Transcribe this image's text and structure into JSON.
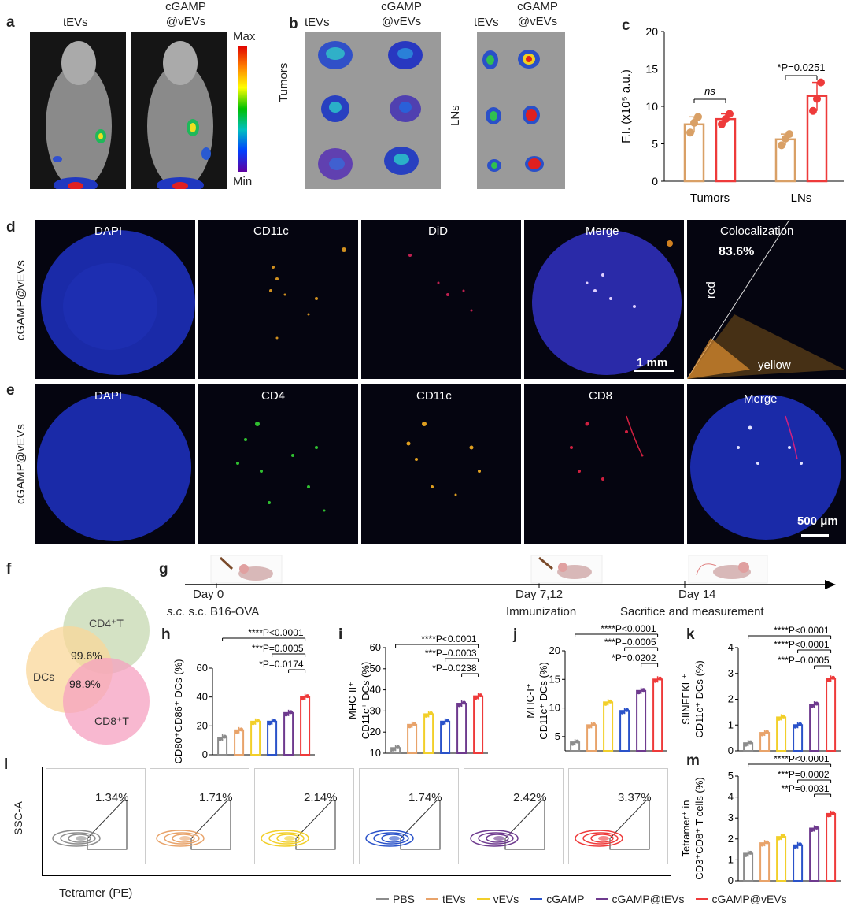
{
  "panel_labels": {
    "a": "a",
    "b": "b",
    "c": "c",
    "d": "d",
    "e": "e",
    "f": "f",
    "g": "g",
    "h": "h",
    "i": "i",
    "j": "j",
    "k": "k",
    "l": "l",
    "m": "m"
  },
  "panel_a": {
    "col1": "tEVs",
    "col2_line1": "cGAMP",
    "col2_line2": "@vEVs",
    "scale_max": "Max",
    "scale_min": "Min"
  },
  "panel_b": {
    "tumors_col1": "tEVs",
    "tumors_col2_line1": "cGAMP",
    "tumors_col2_line2": "@vEVs",
    "lns_col1": "tEVs",
    "lns_col2_line1": "cGAMP",
    "lns_col2_line2": "@vEVs",
    "row_tumors": "Tumors",
    "row_lns": "LNs"
  },
  "panel_d": {
    "row_label": "cGAMP@vEVs",
    "channels": [
      "DAPI",
      "CD11c",
      "DiD",
      "Merge",
      "Colocalization"
    ],
    "coloc_value": "83.6%",
    "axis_red": "red",
    "axis_yellow": "yellow",
    "scale_bar": "1 mm"
  },
  "panel_e": {
    "row_label": "cGAMP@vEVs",
    "channels": [
      "DAPI",
      "CD4",
      "CD11c",
      "CD8",
      "Merge"
    ],
    "scale_bar": "500 μm"
  },
  "panel_f": {
    "circle_top": "CD4⁺T",
    "circle_left": "DCs",
    "circle_bottom": "CD8⁺T",
    "overlap_top": "99.6%",
    "overlap_bottom": "98.9%"
  },
  "panel_g": {
    "day0": "Day 0",
    "day7": "Day 7,12",
    "day14": "Day 14",
    "label0": "s.c. B16-OVA",
    "label7": "Immunization",
    "label14": "Sacrifice and measurement"
  },
  "panel_l": {
    "percentages": [
      "1.34%",
      "1.71%",
      "2.14%",
      "1.74%",
      "2.42%",
      "3.37%"
    ],
    "ylabel": "SSC-A",
    "xlabel": "Tetramer (PE)"
  },
  "legend": [
    "PBS",
    "tEVs",
    "vEVs",
    "cGAMP",
    "cGAMP@tEVs",
    "cGAMP@vEVs"
  ],
  "colors": {
    "PBS": "#8c8c8c",
    "tEVs": "#e8a36a",
    "vEVs": "#f2cf2a",
    "cGAMP": "#2a52c9",
    "cGAMP@tEVs": "#6e3a8e",
    "cGAMP@vEVs": "#ee3a3a",
    "c_tEVs": "#d9a066",
    "c_vEVs": "#ee3a3a"
  },
  "chart_data": [
    {
      "panel": "c",
      "type": "bar",
      "categories": [
        "Tumors",
        "LNs"
      ],
      "series": [
        {
          "name": "tEVs",
          "values": [
            7.6,
            5.6
          ],
          "points": [
            [
              6.5,
              7.8,
              8.6
            ],
            [
              4.8,
              5.7,
              6.3
            ]
          ]
        },
        {
          "name": "cGAMP@vEVs",
          "values": [
            8.3,
            11.4
          ],
          "points": [
            [
              7.6,
              8.3,
              9.0
            ],
            [
              9.4,
              11.0,
              13.2
            ]
          ]
        }
      ],
      "ylabel": "F.I. (x10⁵ a.u.)",
      "ylim": [
        0,
        20
      ],
      "yticks": [
        0,
        5,
        10,
        15,
        20
      ],
      "annotations": [
        "ns",
        "*P=0.0251"
      ]
    },
    {
      "panel": "h",
      "type": "bar",
      "categories": [
        "PBS",
        "tEVs",
        "vEVs",
        "cGAMP",
        "cGAMP@tEVs",
        "cGAMP@vEVs"
      ],
      "values": [
        12,
        17,
        23,
        23,
        29,
        40
      ],
      "ylabel": "CD80⁺CD86⁺ DCs (%)",
      "ylim": [
        0,
        60
      ],
      "yticks": [
        0,
        20,
        40,
        60
      ],
      "annotations": [
        "****P<0.0001",
        "***P=0.0005",
        "*P=0.0174"
      ]
    },
    {
      "panel": "i",
      "type": "bar",
      "categories": [
        "PBS",
        "tEVs",
        "vEVs",
        "cGAMP",
        "cGAMP@tEVs",
        "cGAMP@vEVs"
      ],
      "values": [
        12.5,
        23.5,
        28.5,
        25,
        33.5,
        37
      ],
      "ylabel_line1": "MHC-II⁺",
      "ylabel_line2": "CD11c⁺ DCs (%)",
      "ylim": [
        10,
        60
      ],
      "yticks": [
        10,
        20,
        30,
        40,
        50,
        60
      ],
      "annotations": [
        "****P<0.0001",
        "***P=0.0003",
        "*P=0.0238"
      ]
    },
    {
      "panel": "j",
      "type": "bar",
      "categories": [
        "PBS",
        "tEVs",
        "vEVs",
        "cGAMP",
        "cGAMP@tEVs",
        "cGAMP@vEVs"
      ],
      "values": [
        4,
        7,
        11,
        9.5,
        13,
        15
      ],
      "ylabel_line1": "MHC-I⁺",
      "ylabel_line2": "CD11c⁺ DCs (%)",
      "ylim": [
        2.5,
        20
      ],
      "yticks": [
        5,
        10,
        15,
        20
      ],
      "annotations": [
        "****P<0.0001",
        "***P=0.0005",
        "*P=0.0202"
      ]
    },
    {
      "panel": "k",
      "type": "bar",
      "categories": [
        "PBS",
        "tEVs",
        "vEVs",
        "cGAMP",
        "cGAMP@tEVs",
        "cGAMP@vEVs"
      ],
      "values": [
        0.3,
        0.7,
        1.3,
        1.0,
        1.8,
        2.8
      ],
      "ylabel_line1": "SIINFEKL⁺",
      "ylabel_line2": "CD11c⁺ DCs (%)",
      "ylim": [
        0,
        4
      ],
      "yticks": [
        0,
        1,
        2,
        3,
        4
      ],
      "annotations": [
        "****P<0.0001",
        "****P<0.0001",
        "***P=0.0005"
      ]
    },
    {
      "panel": "m",
      "type": "bar",
      "categories": [
        "PBS",
        "tEVs",
        "vEVs",
        "cGAMP",
        "cGAMP@tEVs",
        "cGAMP@vEVs"
      ],
      "values": [
        1.3,
        1.8,
        2.1,
        1.7,
        2.5,
        3.2
      ],
      "ylabel_line1": "Tetramer⁺ in",
      "ylabel_line2": "CD3⁺CD8⁺ T cells (%)",
      "ylim": [
        0,
        5
      ],
      "yticks": [
        0,
        1,
        2,
        3,
        4,
        5
      ],
      "annotations": [
        "****P<0.0001",
        "***P=0.0002",
        "**P=0.0031"
      ]
    }
  ]
}
